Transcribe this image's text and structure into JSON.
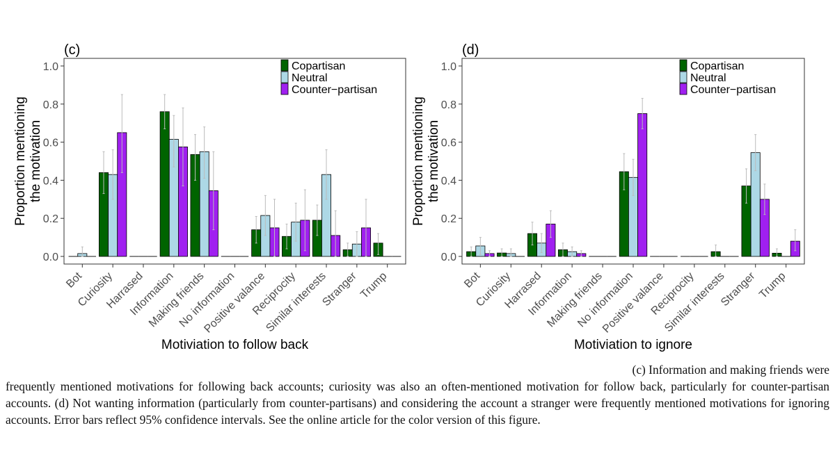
{
  "chart_data": [
    {
      "type": "bar",
      "panel_label": "(c)",
      "xlabel": "Motiviation to follow back",
      "ylabel": "Proportion mentioning the motivation",
      "ylabel_lines": [
        "Proportion mentioning",
        "the motivation"
      ],
      "ylim": [
        0,
        1
      ],
      "yticks": [
        "0.0",
        "0.2",
        "0.4",
        "0.6",
        "0.8",
        "1.0"
      ],
      "grid": false,
      "legend_position": "top-right",
      "categories": [
        "Bot",
        "Curiosity",
        "Harrased",
        "Information",
        "Making friends",
        "No information",
        "Positive valance",
        "Reciprocity",
        "Similar interests",
        "Stranger",
        "Trump"
      ],
      "series": [
        {
          "name": "Copartisan",
          "color": "#006400",
          "values": [
            0,
            0.44,
            0,
            0.76,
            0.535,
            0,
            0.14,
            0.105,
            0.19,
            0.035,
            0.07
          ],
          "ci_low": [
            null,
            0.33,
            null,
            0.67,
            0.4,
            null,
            0.07,
            0.04,
            0.11,
            0.0,
            0.01
          ],
          "ci_high": [
            null,
            0.55,
            null,
            0.85,
            0.64,
            null,
            0.21,
            0.17,
            0.27,
            0.07,
            0.12
          ]
        },
        {
          "name": "Neutral",
          "color": "#ADD8E6",
          "values": [
            0.015,
            0.43,
            0,
            0.615,
            0.55,
            0,
            0.215,
            0.18,
            0.43,
            0.065,
            0
          ],
          "ci_low": [
            0.0,
            0.3,
            null,
            0.47,
            0.41,
            null,
            0.11,
            0.08,
            0.3,
            0.0,
            null
          ],
          "ci_high": [
            0.05,
            0.56,
            null,
            0.74,
            0.68,
            null,
            0.32,
            0.28,
            0.56,
            0.13,
            null
          ]
        },
        {
          "name": "Counter−partisan",
          "color": "#A020F0",
          "values": [
            0,
            0.65,
            0,
            0.575,
            0.345,
            0,
            0.15,
            0.19,
            0.11,
            0.15,
            0
          ],
          "ci_low": [
            null,
            0.44,
            null,
            0.37,
            0.14,
            null,
            0.0,
            0.03,
            0.0,
            0.0,
            null
          ],
          "ci_high": [
            null,
            0.85,
            null,
            0.78,
            0.55,
            null,
            0.3,
            0.35,
            0.24,
            0.3,
            null
          ]
        }
      ]
    },
    {
      "type": "bar",
      "panel_label": "(d)",
      "xlabel": "Motiviation to ignore",
      "ylabel": "Proportion mentioning the motivation",
      "ylabel_lines": [
        "Proportion mentioning",
        "the motivation"
      ],
      "ylim": [
        0,
        1
      ],
      "yticks": [
        "0.0",
        "0.2",
        "0.4",
        "0.6",
        "0.8",
        "1.0"
      ],
      "grid": false,
      "legend_position": "top-right",
      "categories": [
        "Bot",
        "Curiosity",
        "Harrased",
        "Information",
        "Making friends",
        "No information",
        "Positive valance",
        "Reciprocity",
        "Similar interests",
        "Stranger",
        "Trump"
      ],
      "series": [
        {
          "name": "Copartisan",
          "color": "#006400",
          "values": [
            0.025,
            0.018,
            0.12,
            0.035,
            0,
            0.445,
            0,
            0,
            0.025,
            0.37,
            0.017
          ],
          "ci_low": [
            0.0,
            0.0,
            0.06,
            0.0,
            null,
            0.35,
            null,
            null,
            0.0,
            0.28,
            0.0
          ],
          "ci_high": [
            0.05,
            0.04,
            0.18,
            0.07,
            null,
            0.54,
            null,
            null,
            0.06,
            0.46,
            0.04
          ]
        },
        {
          "name": "Neutral",
          "color": "#ADD8E6",
          "values": [
            0.055,
            0.015,
            0.07,
            0.025,
            0,
            0.415,
            0,
            0,
            0,
            0.545,
            0
          ],
          "ci_low": [
            0.01,
            0.0,
            0.02,
            0.0,
            null,
            0.32,
            null,
            null,
            null,
            0.45,
            null
          ],
          "ci_high": [
            0.1,
            0.04,
            0.12,
            0.05,
            null,
            0.51,
            null,
            null,
            null,
            0.64,
            null
          ]
        },
        {
          "name": "Counter−partisan",
          "color": "#A020F0",
          "values": [
            0.015,
            0,
            0.17,
            0.015,
            0,
            0.75,
            0,
            0,
            0,
            0.3,
            0.08
          ],
          "ci_low": [
            0.0,
            null,
            0.1,
            0.0,
            null,
            0.67,
            null,
            null,
            null,
            0.22,
            0.03
          ],
          "ci_high": [
            0.03,
            null,
            0.24,
            0.03,
            null,
            0.83,
            null,
            null,
            null,
            0.38,
            0.14
          ]
        }
      ]
    }
  ],
  "caption": {
    "line1": "(c) Information and making friends were",
    "rest": "frequently mentioned motivations for following back accounts; curiosity was also an often-mentioned motivation for follow back, particularly for counter-partisan accounts. (d) Not wanting information (particularly from counter-partisans) and considering the account a stranger were frequently mentioned motivations for ignoring accounts. Error bars reflect 95% confidence intervals. See the online article for the color version of this figure."
  }
}
